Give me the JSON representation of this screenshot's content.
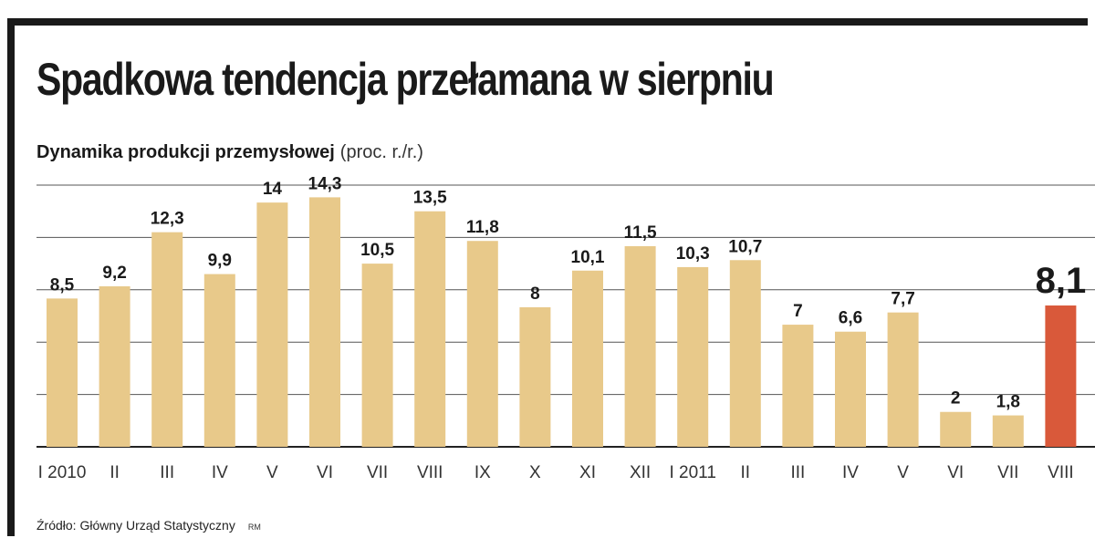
{
  "title": "Spadkowa tendencja przełamana w sierpniu",
  "subtitle": "Dynamika produkcji przemysłowej",
  "unit": "(proc. r./r.)",
  "source": "Źródło: Główny Urząd Statystyczny",
  "credit": "RM",
  "colors": {
    "bar": "#e8c98a",
    "highlight": "#d9593a",
    "grid": "#555555",
    "axis": "#222222"
  },
  "chart_data": {
    "type": "bar",
    "categories": [
      "I 2010",
      "II",
      "III",
      "IV",
      "V",
      "VI",
      "VII",
      "VIII",
      "IX",
      "X",
      "XI",
      "XII",
      "I 2011",
      "II",
      "III",
      "IV",
      "V",
      "VI",
      "VII",
      "VIII"
    ],
    "values": [
      8.5,
      9.2,
      12.3,
      9.9,
      14,
      14.3,
      10.5,
      13.5,
      11.8,
      8,
      10.1,
      11.5,
      10.3,
      10.7,
      7,
      6.6,
      7.7,
      2,
      1.8,
      8.1
    ],
    "labels": [
      "8,5",
      "9,2",
      "12,3",
      "9,9",
      "14",
      "14,3",
      "10,5",
      "13,5",
      "11,8",
      "8",
      "10,1",
      "11,5",
      "10,3",
      "10,7",
      "7",
      "6,6",
      "7,7",
      "2",
      "1,8",
      "8,1"
    ],
    "highlight_index": 19,
    "ylim": [
      0,
      15
    ],
    "grid": true,
    "gridlines": [
      0,
      3,
      6,
      9,
      12,
      15
    ]
  }
}
